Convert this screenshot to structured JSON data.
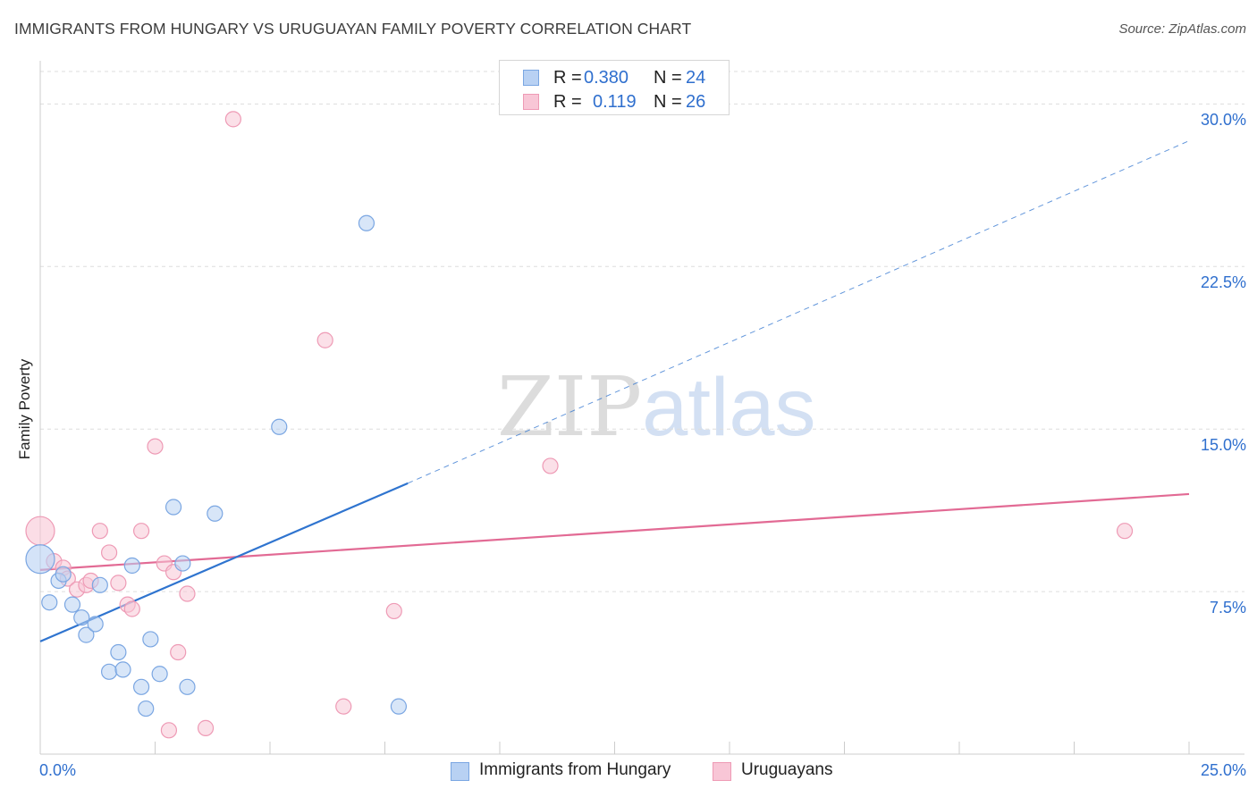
{
  "header": {
    "title": "IMMIGRANTS FROM HUNGARY VS URUGUAYAN FAMILY POVERTY CORRELATION CHART",
    "source": "Source: ZipAtlas.com"
  },
  "watermark": {
    "zip": "ZIP",
    "atlas": "atlas"
  },
  "legend_top": {
    "rows": [
      {
        "r_label": "R =",
        "r_value": "0.380",
        "n_label": "N =",
        "n_value": "24"
      },
      {
        "r_label": "R =",
        "r_value": "0.119",
        "n_label": "N =",
        "n_value": "26"
      }
    ]
  },
  "legend_bottom": [
    "Immigrants from Hungary",
    "Uruguayans"
  ],
  "colors": {
    "hungary_fill": "#b8d1f3",
    "hungary_stroke": "#7aa6e2",
    "hungary_line": "#2f74cf",
    "uruguay_fill": "#f8c6d6",
    "uruguay_stroke": "#ee9ab5",
    "uruguay_line": "#e26a94",
    "tick_label": "#2f6fce",
    "grid": "#dddddd"
  },
  "chart_data": {
    "type": "scatter",
    "title": "IMMIGRANTS FROM HUNGARY VS URUGUAYAN FAMILY POVERTY CORRELATION CHART",
    "xlabel": "",
    "ylabel": "Family Poverty",
    "xlim": [
      0,
      25
    ],
    "ylim": [
      0,
      31.5
    ],
    "x_tick_labels": [
      "0.0%",
      "25.0%"
    ],
    "y_ticks": [
      7.5,
      15.0,
      22.5,
      30.0
    ],
    "y_tick_labels": [
      "7.5%",
      "15.0%",
      "22.5%",
      "30.0%"
    ],
    "grid": true,
    "legend_position": "top-center",
    "series": [
      {
        "name": "Immigrants from Hungary",
        "R": 0.38,
        "N": 24,
        "points": [
          [
            0.0,
            9.0,
            "large"
          ],
          [
            0.2,
            7.0
          ],
          [
            0.4,
            8.0
          ],
          [
            0.5,
            8.3
          ],
          [
            0.7,
            6.9
          ],
          [
            0.9,
            6.3
          ],
          [
            1.0,
            5.5
          ],
          [
            1.2,
            6.0
          ],
          [
            1.3,
            7.8
          ],
          [
            1.5,
            3.8
          ],
          [
            1.7,
            4.7
          ],
          [
            1.8,
            3.9
          ],
          [
            2.0,
            8.7
          ],
          [
            2.2,
            3.1
          ],
          [
            2.3,
            2.1
          ],
          [
            2.4,
            5.3
          ],
          [
            2.6,
            3.7
          ],
          [
            2.9,
            11.4
          ],
          [
            3.1,
            8.8
          ],
          [
            3.2,
            3.1
          ],
          [
            3.8,
            11.1
          ],
          [
            5.2,
            15.1
          ],
          [
            7.1,
            24.5
          ],
          [
            7.8,
            2.2
          ]
        ],
        "trend_line": {
          "x": [
            0,
            8.0
          ],
          "y": [
            5.2,
            12.5
          ]
        },
        "trend_extension": {
          "x": [
            8.0,
            25.0
          ],
          "y": [
            12.5,
            28.3
          ]
        }
      },
      {
        "name": "Uruguayans",
        "R": 0.119,
        "N": 26,
        "points": [
          [
            0.0,
            10.3,
            "large"
          ],
          [
            0.3,
            8.9
          ],
          [
            0.5,
            8.6
          ],
          [
            0.6,
            8.1
          ],
          [
            0.8,
            7.6
          ],
          [
            1.0,
            7.8
          ],
          [
            1.1,
            8.0
          ],
          [
            1.3,
            10.3
          ],
          [
            1.5,
            9.3
          ],
          [
            1.7,
            7.9
          ],
          [
            1.9,
            6.9
          ],
          [
            2.0,
            6.7
          ],
          [
            2.2,
            10.3
          ],
          [
            2.5,
            14.2
          ],
          [
            2.7,
            8.8
          ],
          [
            2.8,
            1.1
          ],
          [
            2.9,
            8.4
          ],
          [
            3.0,
            4.7
          ],
          [
            3.2,
            7.4
          ],
          [
            3.6,
            1.2
          ],
          [
            4.2,
            29.3
          ],
          [
            6.2,
            19.1
          ],
          [
            6.6,
            2.2
          ],
          [
            7.7,
            6.6
          ],
          [
            11.1,
            13.3
          ],
          [
            23.6,
            10.3
          ]
        ],
        "trend_line": {
          "x": [
            0,
            25.0
          ],
          "y": [
            8.5,
            12.0
          ]
        }
      }
    ]
  }
}
